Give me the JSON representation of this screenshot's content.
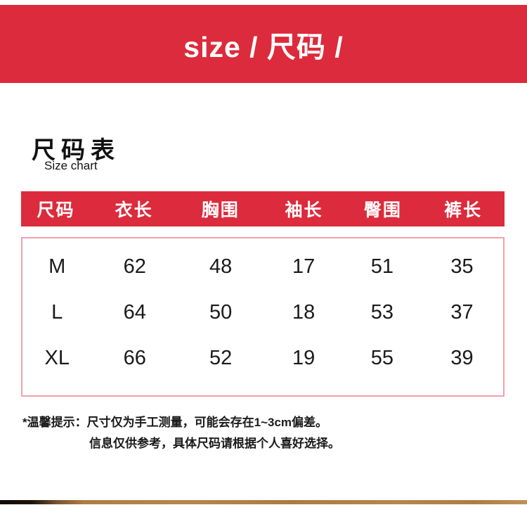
{
  "banner": {
    "title": "size / 尺码 /"
  },
  "section": {
    "title_zh": "尺码表",
    "title_en": "Size chart"
  },
  "table": {
    "headers": [
      "尺码",
      "衣长",
      "胸围",
      "袖长",
      "臀围",
      "裤长"
    ],
    "rows": [
      [
        "M",
        "62",
        "48",
        "17",
        "51",
        "35"
      ],
      [
        "L",
        "64",
        "50",
        "18",
        "53",
        "37"
      ],
      [
        "XL",
        "66",
        "52",
        "19",
        "55",
        "39"
      ]
    ]
  },
  "notes": {
    "line1": "*温馨提示：尺寸仅为手工测量，可能会存在1~3cm偏差。",
    "line2": "信息仅供参考，具体尺码请根据个人喜好选择。"
  },
  "colors": {
    "accent_red": "#dc2b3c",
    "table_border_pink": "#f2a2ab",
    "banner_text": "#ffffff",
    "body_text": "#1a1a1a"
  }
}
